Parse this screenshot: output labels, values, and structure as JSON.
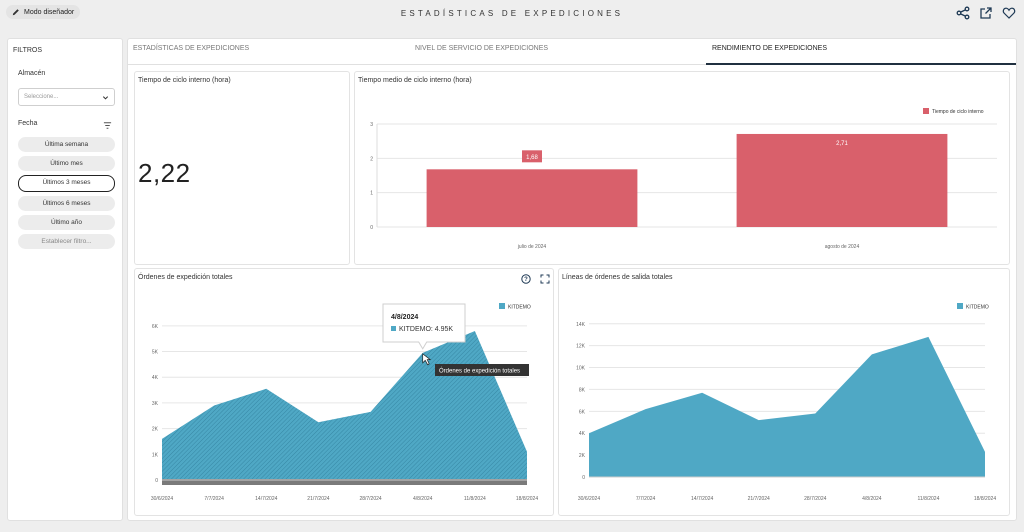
{
  "header": {
    "designer_mode": "Modo diseñador",
    "title": "ESTADÍSTICAS DE EXPEDICIONES"
  },
  "sidebar": {
    "title": "FILTROS",
    "warehouse_label": "Almacén",
    "warehouse_placeholder": "Seleccione...",
    "date_label": "Fecha",
    "date_options": [
      "Última semana",
      "Último mes",
      "Últimos 3 meses",
      "Últimos 6 meses",
      "Último año",
      "Establecer filtro..."
    ],
    "selected_date_option": "Últimos 3 meses"
  },
  "tabs": [
    {
      "label": "ESTADÍSTICAS DE EXPEDICIONES",
      "active": false
    },
    {
      "label": "NIVEL DE SERVICIO DE EXPEDICIONES",
      "active": false
    },
    {
      "label": "RENDIMIENTO DE EXPEDICIONES",
      "active": true
    }
  ],
  "cards": {
    "kpi": {
      "title": "Tiempo de ciclo interno (hora)",
      "value": "2,22"
    },
    "avg_cycle": {
      "title": "Tiempo medio de ciclo interno (hora)"
    },
    "total_orders": {
      "title": "Órdenes de expedición totales",
      "tooltip_date": "4/8/2024",
      "tooltip_value": "KITDEMO: 4.95K",
      "hover_label": "Órdenes de expedición totales"
    },
    "total_lines": {
      "title": "Líneas de órdenes de salida totales"
    }
  },
  "colors": {
    "accent_red": "#d9606b",
    "accent_blue": "#4fa8c5",
    "tab_underline": "#203040"
  },
  "chart_data": [
    {
      "type": "bar",
      "title": "Tiempo medio de ciclo interno (hora)",
      "categories": [
        "julio de 2024",
        "agosto de 2024"
      ],
      "series": [
        {
          "name": "Tiempo de ciclo interno",
          "values": [
            1.68,
            2.71
          ],
          "labels": [
            "1,68",
            "2,71"
          ]
        }
      ],
      "ylim": [
        0,
        3
      ],
      "yticks": [
        "0",
        "1",
        "2",
        "3"
      ],
      "grid": true,
      "legend": "top-right"
    },
    {
      "type": "area",
      "title": "Órdenes de expedición totales",
      "x": [
        "30/6/2024",
        "7/7/2024",
        "14/7/2024",
        "21/7/2024",
        "28/7/2024",
        "4/8/2024",
        "11/8/2024",
        "18/8/2024"
      ],
      "series": [
        {
          "name": "KITDEMO",
          "values": [
            1600,
            2900,
            3550,
            2250,
            2650,
            4950,
            5800,
            1100
          ]
        }
      ],
      "ylim": [
        0,
        6500
      ],
      "yticks": [
        "0",
        "1K",
        "2K",
        "3K",
        "4K",
        "5K",
        "6K"
      ],
      "grid": true,
      "legend": "top-right"
    },
    {
      "type": "area",
      "title": "Líneas de órdenes de salida totales",
      "x": [
        "30/6/2024",
        "7/7/2024",
        "14/7/2024",
        "21/7/2024",
        "28/7/2024",
        "4/8/2024",
        "11/8/2024",
        "18/8/2024"
      ],
      "series": [
        {
          "name": "KITDEMO",
          "values": [
            4000,
            6200,
            7700,
            5200,
            5800,
            11200,
            12800,
            2300
          ]
        }
      ],
      "ylim": [
        0,
        14800
      ],
      "yticks": [
        "0",
        "2K",
        "4K",
        "6K",
        "8K",
        "10K",
        "12K",
        "14K"
      ],
      "grid": true,
      "legend": "top-right"
    }
  ]
}
